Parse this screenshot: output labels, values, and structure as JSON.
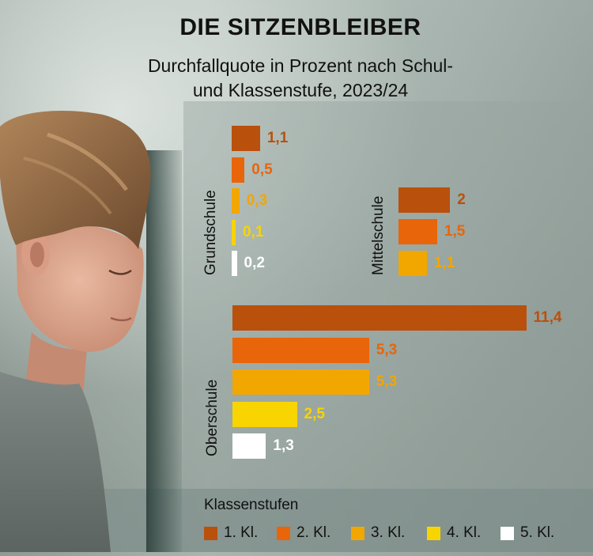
{
  "title": "DIE SITZENBLEIBER",
  "subtitle_line1": "Durchfallquote in Prozent nach Schul-",
  "subtitle_line2": "und Klassenstufe, 2023/24",
  "colors": {
    "k1": "#b9500c",
    "k2": "#e8650a",
    "k3": "#f2a600",
    "k4": "#f8d400",
    "k5": "#ffffff"
  },
  "chart_data": {
    "type": "bar",
    "orientation": "horizontal",
    "title": "DIE SITZENBLEIBER",
    "subtitle": "Durchfallquote in Prozent nach Schul- und Klassenstufe, 2023/24",
    "legend_title": "Klassenstufen",
    "series_names": [
      "1. Kl.",
      "2. Kl.",
      "3. Kl.",
      "4. Kl.",
      "5. Kl."
    ],
    "groups": [
      {
        "name": "Grundschule",
        "categories": [
          "1. Kl.",
          "2. Kl.",
          "3. Kl.",
          "4. Kl.",
          "5. Kl."
        ],
        "values": [
          1.1,
          0.5,
          0.3,
          0.1,
          0.2
        ],
        "labels": [
          "1,1",
          "0,5",
          "0,3",
          "0,1",
          "0,2"
        ]
      },
      {
        "name": "Mittelschule",
        "categories": [
          "1. Kl.",
          "2. Kl.",
          "3. Kl."
        ],
        "values": [
          2,
          1.5,
          1.1
        ],
        "labels": [
          "2",
          "1,5",
          "1,1"
        ]
      },
      {
        "name": "Oberschule",
        "categories": [
          "1. Kl.",
          "2. Kl.",
          "3. Kl.",
          "4. Kl.",
          "5. Kl."
        ],
        "values": [
          11.4,
          5.3,
          5.3,
          2.5,
          1.3
        ],
        "labels": [
          "11,4",
          "5,3",
          "5,3",
          "2,5",
          "1,3"
        ]
      }
    ],
    "xlim": [
      0,
      11.4
    ],
    "grid": false
  }
}
